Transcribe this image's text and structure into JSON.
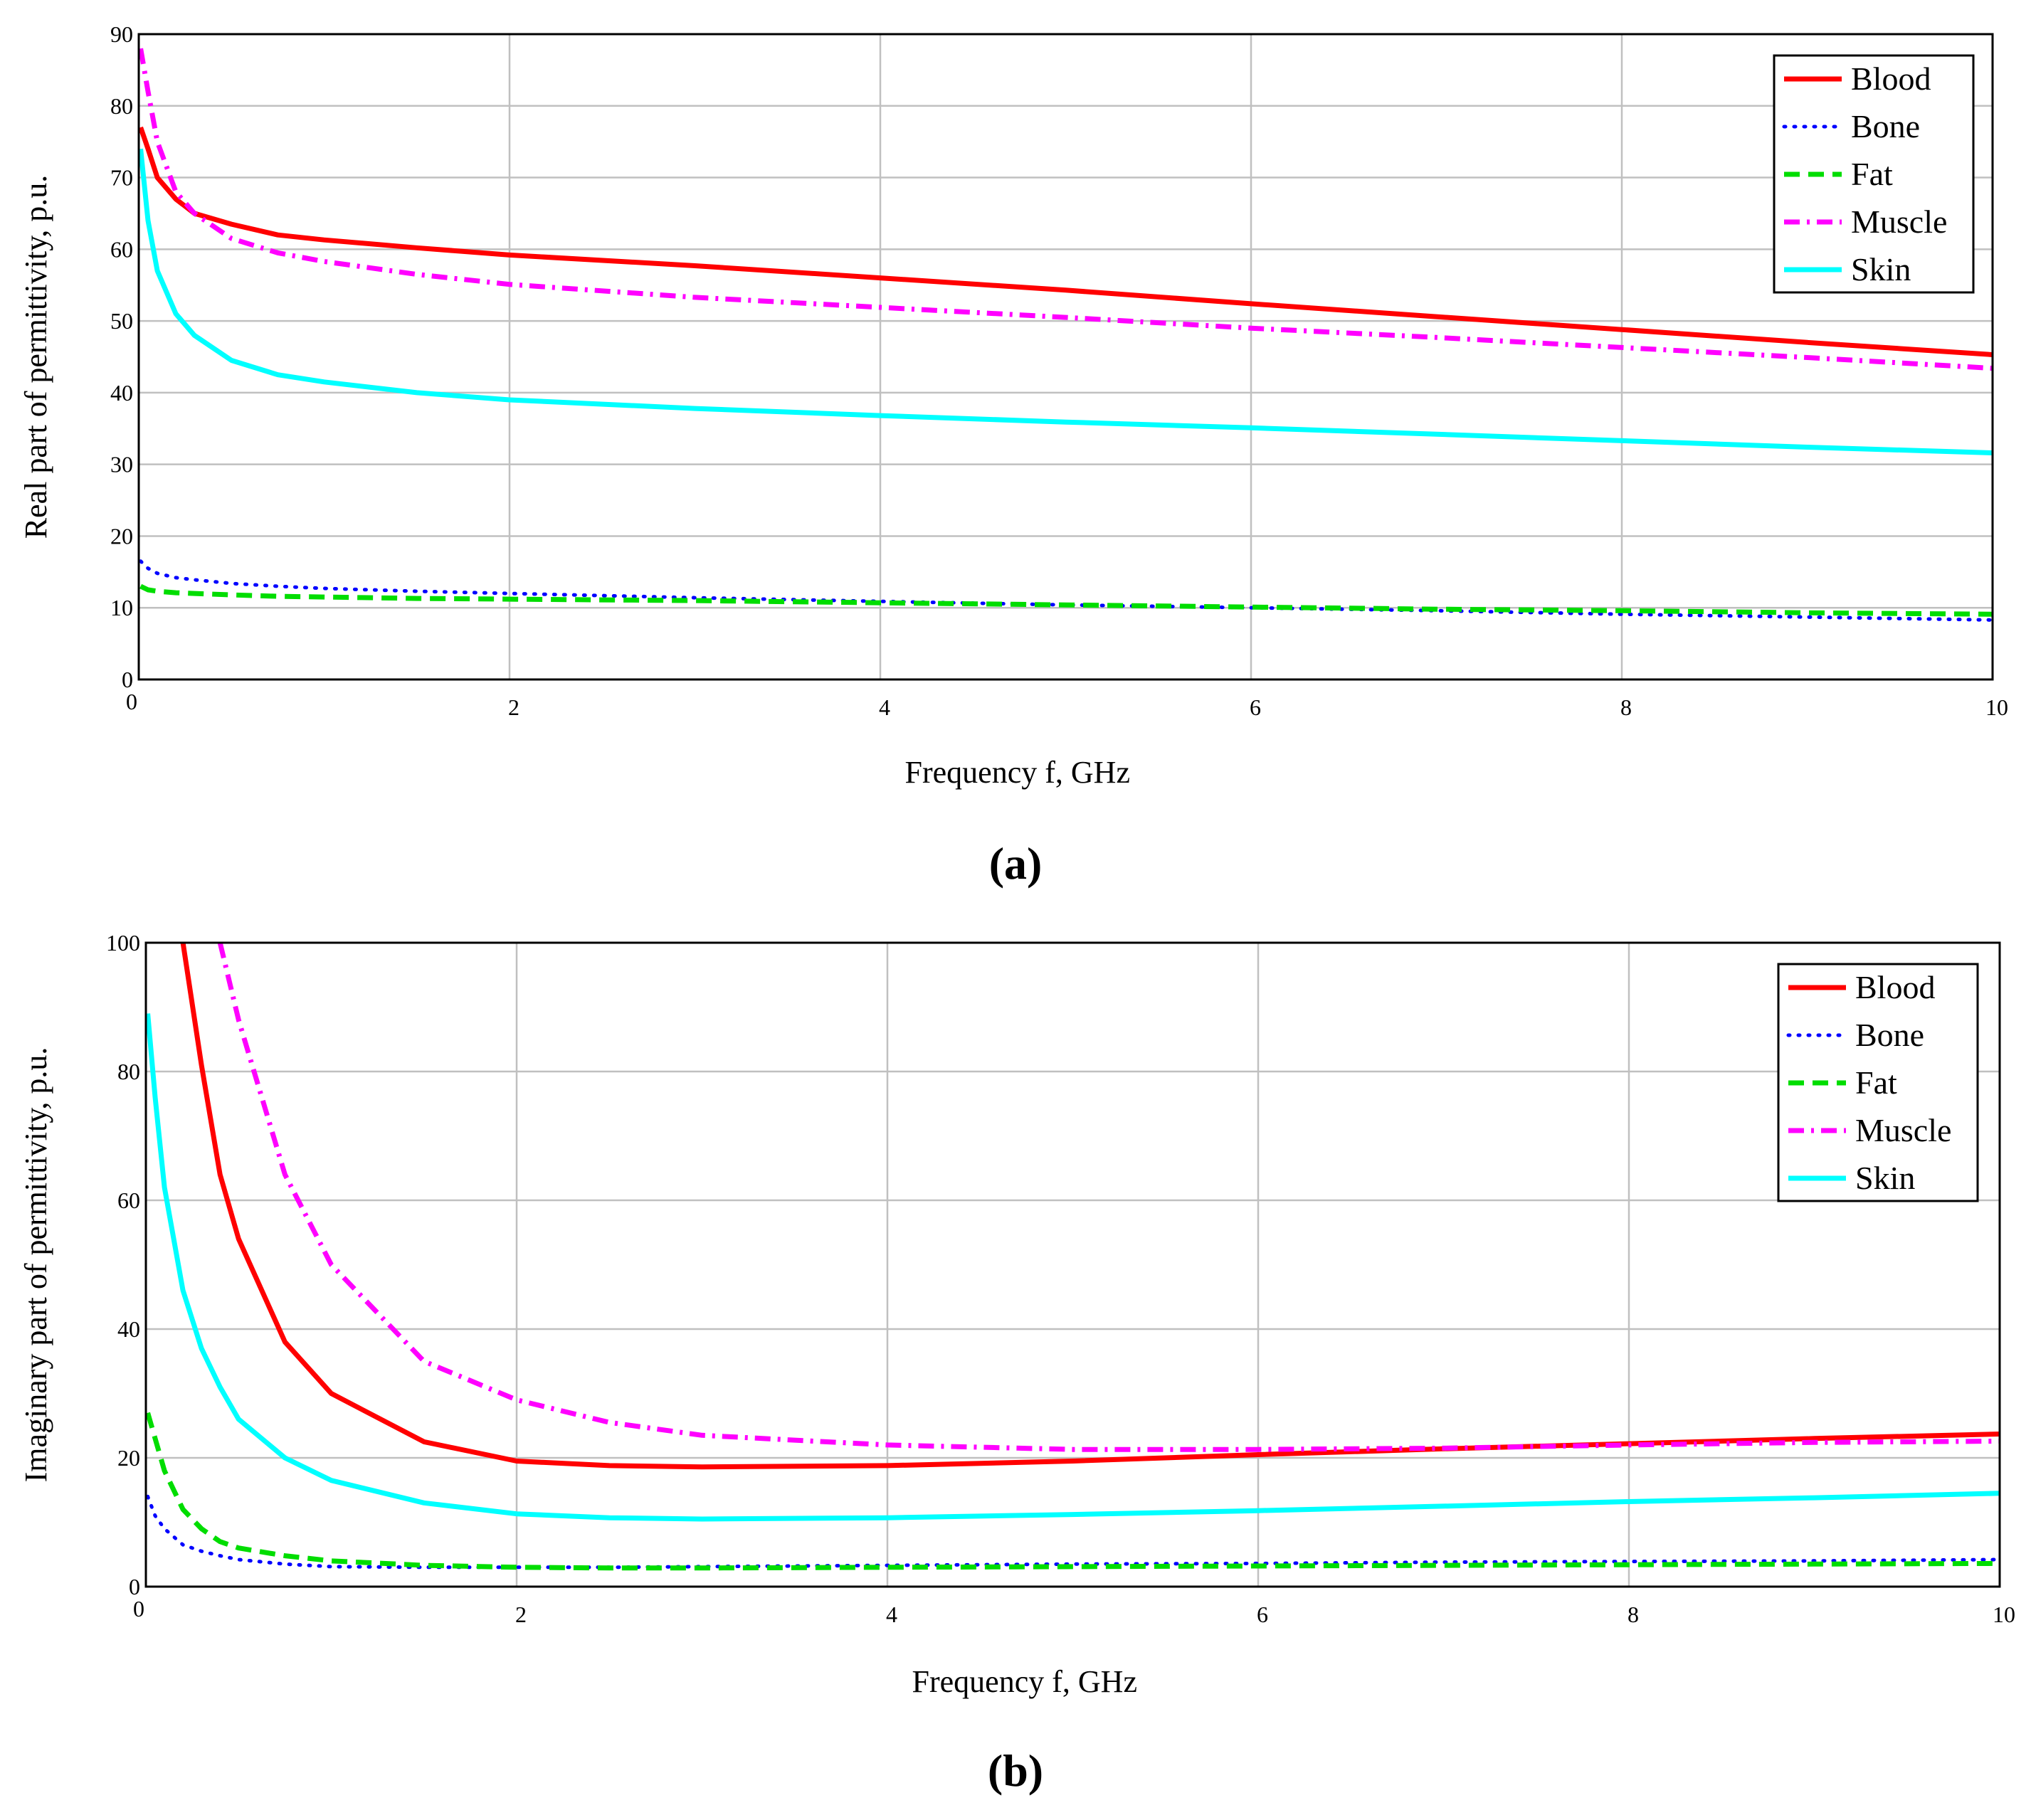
{
  "figure": {
    "panel_labels": [
      "(a)",
      "(b)"
    ],
    "series_styles": {
      "Blood": {
        "color": "#ff0000",
        "dash": "solid"
      },
      "Bone": {
        "color": "#0000ff",
        "dash": "dotted"
      },
      "Fat": {
        "color": "#00dd00",
        "dash": "dashed"
      },
      "Muscle": {
        "color": "#ff00ff",
        "dash": "dashdot"
      },
      "Skin": {
        "color": "#00ffff",
        "dash": "solid"
      }
    }
  },
  "chart_data": [
    {
      "type": "line",
      "panel": "(a)",
      "xlabel": "Frequency f, GHz",
      "ylabel": "Real part of permittivity, p.u.",
      "xlim": [
        0,
        10
      ],
      "ylim": [
        0,
        90
      ],
      "xticks": [
        2,
        4,
        6,
        8,
        10
      ],
      "yticks": [
        0,
        10,
        20,
        30,
        40,
        50,
        60,
        70,
        80,
        90
      ],
      "x_tick_labels": [
        "2",
        "4",
        "6",
        "8",
        "10"
      ],
      "y_tick_labels": [
        "0",
        "10",
        "20",
        "30",
        "40",
        "50",
        "60",
        "70",
        "80",
        "90"
      ],
      "origin_x_label": "0",
      "grid": true,
      "legend": "top-right",
      "x": [
        0.01,
        0.05,
        0.1,
        0.2,
        0.3,
        0.5,
        0.75,
        1,
        1.5,
        2,
        3,
        4,
        5,
        6,
        7,
        8,
        9,
        10
      ],
      "series": [
        {
          "name": "Blood",
          "values": [
            77,
            74,
            70,
            67,
            65,
            63.5,
            62,
            61.3,
            60.2,
            59.2,
            57.7,
            56,
            54.3,
            52.4,
            50.6,
            48.8,
            47,
            45.3
          ]
        },
        {
          "name": "Bone",
          "values": [
            16.5,
            15.5,
            14.8,
            14.2,
            13.9,
            13.4,
            13,
            12.7,
            12.3,
            12,
            11.4,
            10.9,
            10.4,
            10,
            9.6,
            9.1,
            8.7,
            8.3
          ]
        },
        {
          "name": "Fat",
          "values": [
            13,
            12.5,
            12.3,
            12.1,
            12,
            11.8,
            11.6,
            11.5,
            11.3,
            11.2,
            11,
            10.7,
            10.4,
            10.1,
            9.8,
            9.6,
            9.3,
            9.1
          ]
        },
        {
          "name": "Muscle",
          "values": [
            88,
            82,
            75,
            68,
            65,
            61.5,
            59.5,
            58.3,
            56.5,
            55.1,
            53.3,
            51.9,
            50.5,
            49,
            47.7,
            46.3,
            44.9,
            43.4
          ]
        },
        {
          "name": "Skin",
          "values": [
            74,
            64,
            57,
            51,
            48,
            44.5,
            42.5,
            41.5,
            40,
            39,
            37.8,
            36.8,
            35.9,
            35.1,
            34.2,
            33.3,
            32.4,
            31.6
          ]
        }
      ]
    },
    {
      "type": "line",
      "panel": "(b)",
      "xlabel": "Frequency f, GHz",
      "ylabel": "Imaginary part of permittivity, p.u.",
      "xlim": [
        0,
        10
      ],
      "ylim": [
        0,
        100
      ],
      "xticks": [
        2,
        4,
        6,
        8,
        10
      ],
      "yticks": [
        0,
        20,
        40,
        60,
        80,
        100
      ],
      "x_tick_labels": [
        "2",
        "4",
        "6",
        "8",
        "10"
      ],
      "y_tick_labels": [
        "0",
        "20",
        "40",
        "60",
        "80",
        "100"
      ],
      "origin_x_label": "0",
      "grid": true,
      "legend": "top-right",
      "x": [
        0.01,
        0.05,
        0.1,
        0.2,
        0.3,
        0.4,
        0.5,
        0.75,
        1,
        1.5,
        2,
        2.5,
        3,
        4,
        5,
        6,
        7,
        8,
        9,
        10
      ],
      "series": [
        {
          "name": "Blood",
          "values": [
            null,
            null,
            null,
            100,
            81,
            64,
            54,
            38,
            30,
            22.5,
            19.5,
            18.8,
            18.6,
            18.8,
            19.5,
            20.5,
            21.4,
            22.2,
            23,
            23.7
          ]
        },
        {
          "name": "Bone",
          "values": [
            14,
            11,
            9,
            6.5,
            5.5,
            4.8,
            4.2,
            3.5,
            3.1,
            3,
            3,
            3,
            3.1,
            3.3,
            3.5,
            3.6,
            3.8,
            3.9,
            4,
            4.2
          ]
        },
        {
          "name": "Fat",
          "values": [
            27,
            23,
            18,
            12,
            9,
            7,
            6,
            4.8,
            4,
            3.3,
            3,
            2.9,
            2.9,
            3,
            3.1,
            3.2,
            3.3,
            3.4,
            3.5,
            3.6
          ]
        },
        {
          "name": "Muscle",
          "values": [
            null,
            null,
            null,
            null,
            null,
            100,
            88,
            64,
            50,
            35,
            29,
            25.5,
            23.5,
            22,
            21.3,
            21.3,
            21.5,
            22,
            22.4,
            22.6
          ]
        },
        {
          "name": "Skin",
          "values": [
            89,
            76,
            62,
            46,
            37,
            31,
            26,
            20,
            16.5,
            13,
            11.3,
            10.7,
            10.5,
            10.7,
            11.2,
            11.8,
            12.5,
            13.2,
            13.8,
            14.5
          ]
        }
      ]
    }
  ]
}
